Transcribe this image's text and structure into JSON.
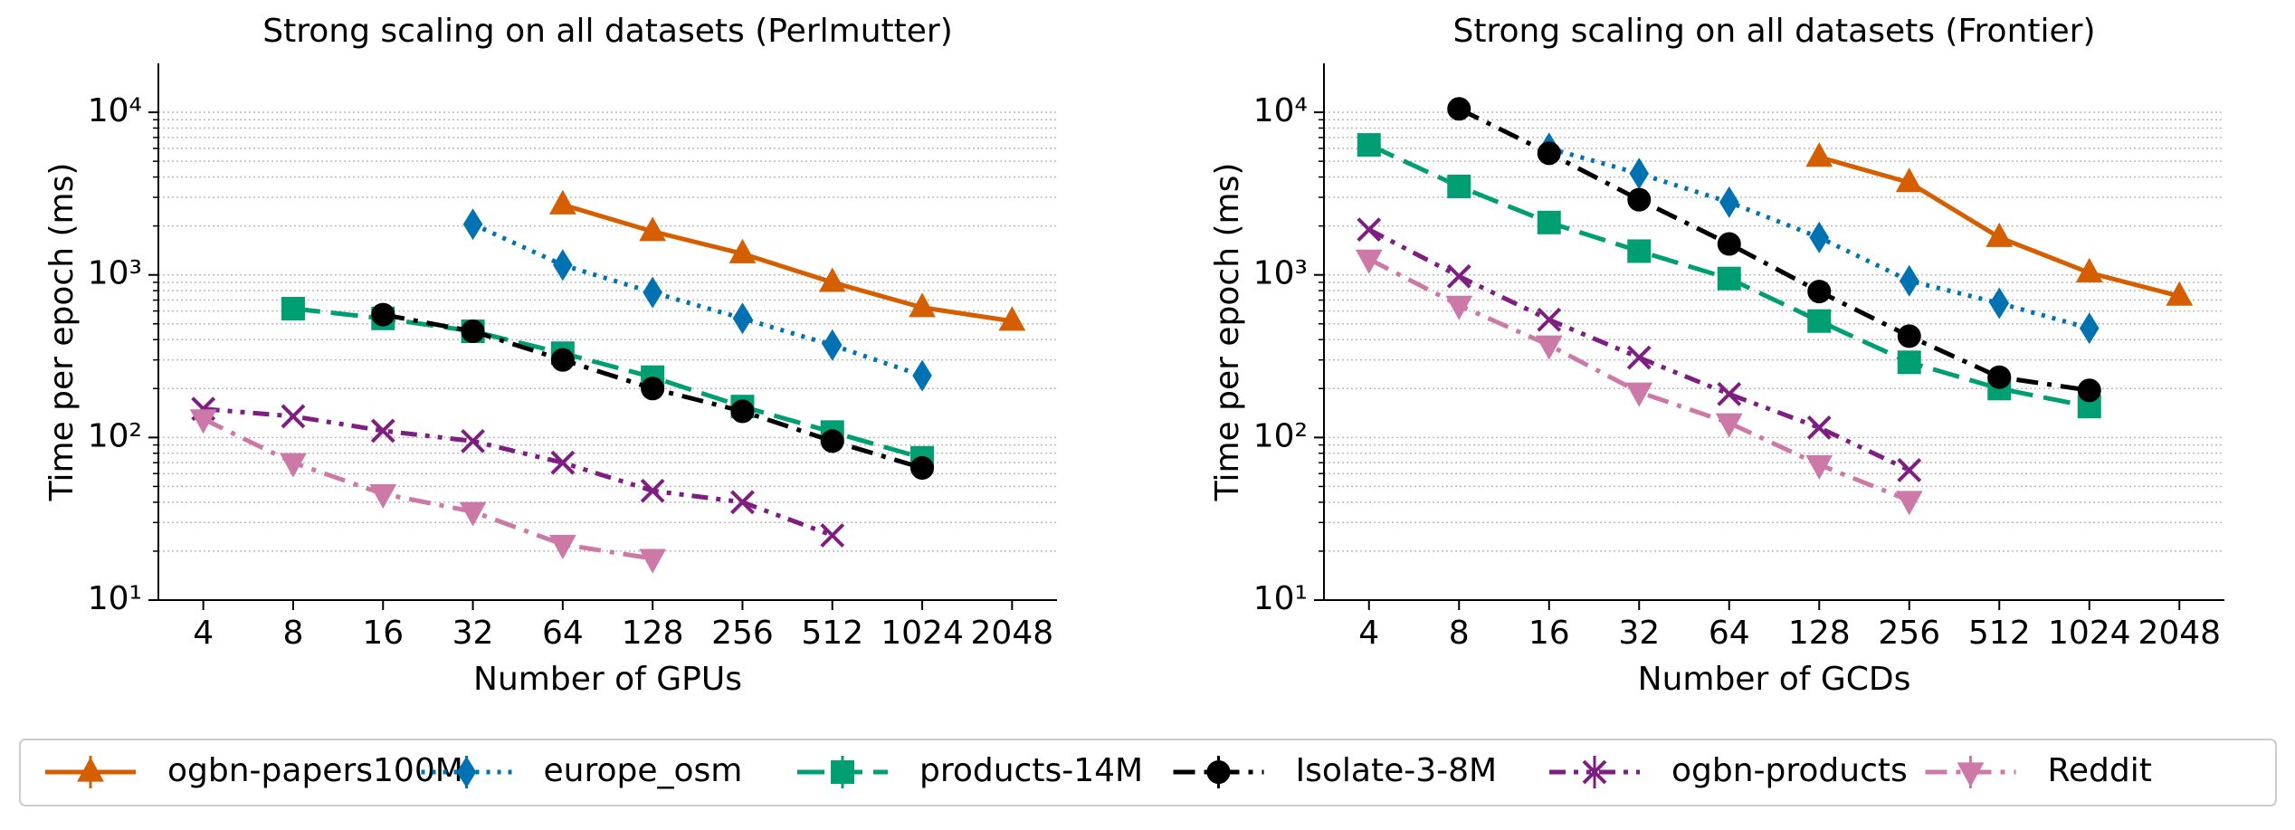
{
  "chart_data": [
    {
      "type": "line",
      "title": "Strong scaling on all datasets (Perlmutter)",
      "xlabel": "Number of GPUs",
      "ylabel": "Time per epoch (ms)",
      "categories": [
        "4",
        "8",
        "16",
        "32",
        "64",
        "128",
        "256",
        "512",
        "1024",
        "2048"
      ],
      "log_y": true,
      "grid": true,
      "ylim": [
        10,
        20000
      ],
      "yticks": [
        {
          "value": 10,
          "label": "10¹"
        },
        {
          "value": 100,
          "label": "10²"
        },
        {
          "value": 1000,
          "label": "10³"
        },
        {
          "value": 10000,
          "label": "10⁴"
        }
      ],
      "series": [
        {
          "name": "ogbn-papers100M",
          "color": "#d55e00",
          "dash": "solid",
          "marker": "triangle-up",
          "values": [
            null,
            null,
            null,
            null,
            2700,
            1850,
            1350,
            900,
            630,
            520
          ]
        },
        {
          "name": "europe_osm",
          "color": "#0072b2",
          "dash": "dotted",
          "marker": "diamond",
          "values": [
            null,
            null,
            null,
            2050,
            1150,
            780,
            540,
            370,
            240,
            null
          ]
        },
        {
          "name": "products-14M",
          "color": "#009e73",
          "dash": "dashed",
          "marker": "square",
          "values": [
            null,
            620,
            540,
            450,
            330,
            235,
            155,
            108,
            75,
            null
          ]
        },
        {
          "name": "Isolate-3-8M",
          "color": "#000000",
          "dash": "dashdot",
          "marker": "circle",
          "values": [
            null,
            null,
            570,
            450,
            300,
            200,
            145,
            95,
            65,
            null
          ]
        },
        {
          "name": "ogbn-products",
          "color": "#7e1e80",
          "dash": "dashdotdot",
          "marker": "x",
          "values": [
            150,
            135,
            110,
            95,
            70,
            47,
            40,
            25,
            null,
            null
          ]
        },
        {
          "name": "Reddit",
          "color": "#cc79a7",
          "dash": "dashdot",
          "marker": "triangle-down",
          "values": [
            130,
            70,
            45,
            35,
            22,
            18,
            null,
            null,
            null,
            null
          ]
        }
      ]
    },
    {
      "type": "line",
      "title": "Strong scaling on all datasets (Frontier)",
      "xlabel": "Number of GCDs",
      "ylabel": "Time per epoch (ms)",
      "categories": [
        "4",
        "8",
        "16",
        "32",
        "64",
        "128",
        "256",
        "512",
        "1024",
        "2048"
      ],
      "log_y": true,
      "grid": true,
      "ylim": [
        10,
        20000
      ],
      "yticks": [
        {
          "value": 10,
          "label": "10¹"
        },
        {
          "value": 100,
          "label": "10²"
        },
        {
          "value": 1000,
          "label": "10³"
        },
        {
          "value": 10000,
          "label": "10⁴"
        }
      ],
      "series": [
        {
          "name": "ogbn-papers100M",
          "color": "#d55e00",
          "dash": "solid",
          "marker": "triangle-up",
          "values": [
            null,
            null,
            null,
            null,
            null,
            5300,
            3700,
            1700,
            1030,
            740
          ]
        },
        {
          "name": "europe_osm",
          "color": "#0072b2",
          "dash": "dotted",
          "marker": "diamond",
          "values": [
            null,
            null,
            6000,
            4200,
            2800,
            1700,
            920,
            670,
            470,
            null
          ]
        },
        {
          "name": "products-14M",
          "color": "#009e73",
          "dash": "dashed",
          "marker": "square",
          "values": [
            6300,
            3500,
            2100,
            1400,
            950,
            520,
            290,
            200,
            155,
            null
          ]
        },
        {
          "name": "Isolate-3-8M",
          "color": "#000000",
          "dash": "dashdot",
          "marker": "circle",
          "values": [
            null,
            10500,
            5600,
            2900,
            1550,
            790,
            420,
            235,
            195,
            null
          ]
        },
        {
          "name": "ogbn-products",
          "color": "#7e1e80",
          "dash": "dashdotdot",
          "marker": "x",
          "values": [
            1900,
            980,
            530,
            310,
            185,
            115,
            63,
            null,
            null,
            null
          ]
        },
        {
          "name": "Reddit",
          "color": "#cc79a7",
          "dash": "dashdot",
          "marker": "triangle-down",
          "values": [
            1250,
            650,
            370,
            190,
            123,
            68,
            41,
            null,
            null,
            null
          ]
        }
      ]
    }
  ]
}
